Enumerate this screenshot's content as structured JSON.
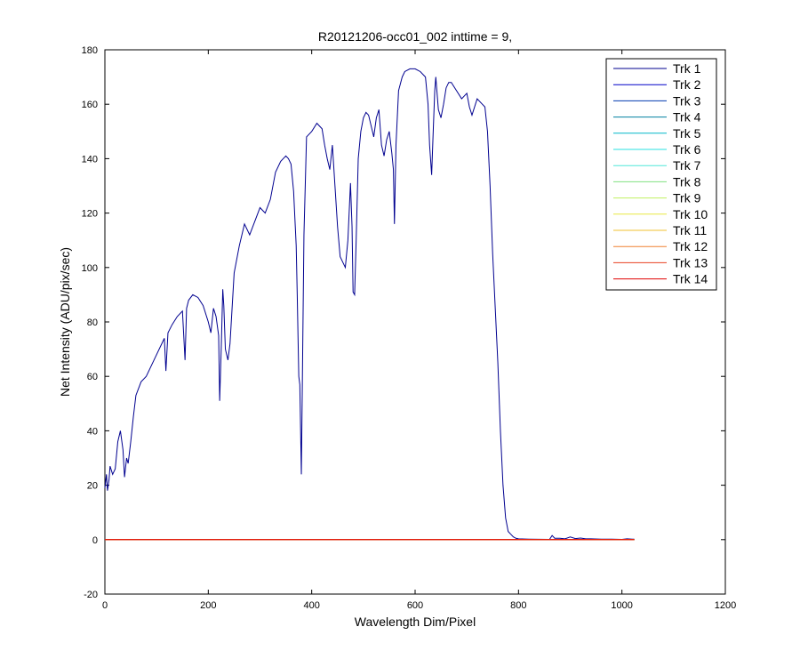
{
  "chart_data": {
    "type": "line",
    "title": "R20121206-occ01_002 inttime = 9,",
    "xlabel": "Wavelength Dim/Pixel",
    "ylabel": "Net Intensity (ADU/pix/sec)",
    "xlim": [
      0,
      1200
    ],
    "ylim": [
      -20,
      180
    ],
    "xticks": [
      0,
      200,
      400,
      600,
      800,
      1000,
      1200
    ],
    "yticks": [
      -20,
      0,
      20,
      40,
      60,
      80,
      100,
      120,
      140,
      160,
      180
    ],
    "grid": false,
    "legend_position": "top-right",
    "series": [
      {
        "name": "Trk 1",
        "color": "#00008f",
        "x": [
          0,
          3,
          5,
          8,
          10,
          15,
          20,
          25,
          30,
          35,
          38,
          42,
          45,
          50,
          55,
          60,
          70,
          80,
          90,
          100,
          110,
          115,
          118,
          122,
          130,
          140,
          150,
          155,
          158,
          162,
          170,
          180,
          190,
          200,
          205,
          210,
          215,
          220,
          222,
          225,
          228,
          230,
          233,
          238,
          242,
          250,
          260,
          270,
          280,
          290,
          300,
          310,
          320,
          330,
          340,
          350,
          355,
          360,
          365,
          370,
          372,
          375,
          377,
          380,
          385,
          390,
          400,
          410,
          420,
          425,
          430,
          435,
          440,
          445,
          450,
          455,
          460,
          465,
          470,
          475,
          478,
          480,
          483,
          486,
          490,
          495,
          500,
          505,
          510,
          515,
          520,
          525,
          530,
          535,
          540,
          545,
          550,
          555,
          558,
          560,
          563,
          568,
          575,
          580,
          590,
          600,
          610,
          620,
          625,
          628,
          632,
          635,
          638,
          640,
          645,
          650,
          655,
          660,
          665,
          670,
          680,
          690,
          700,
          705,
          710,
          720,
          730,
          735,
          740,
          745,
          750,
          755,
          760,
          765,
          770,
          775,
          780,
          785,
          790,
          795,
          800,
          820,
          860,
          865,
          870,
          880,
          890,
          900,
          910,
          920,
          930,
          940,
          960,
          980,
          1000,
          1010,
          1020,
          1024
        ],
        "values": [
          19,
          24,
          18,
          22,
          27,
          24,
          26,
          36,
          40,
          33,
          23,
          30,
          28,
          36,
          45,
          53,
          58,
          60,
          64,
          68,
          72,
          74,
          62,
          76,
          79,
          82,
          84,
          66,
          85,
          88,
          90,
          89,
          86,
          80,
          76,
          85,
          82,
          75,
          51,
          70,
          92,
          86,
          70,
          66,
          72,
          98,
          108,
          116,
          112,
          117,
          122,
          120,
          125,
          135,
          139,
          141,
          140,
          138,
          128,
          108,
          90,
          60,
          57,
          24,
          112,
          148,
          150,
          153,
          151,
          145,
          140,
          136,
          145,
          130,
          115,
          104,
          102,
          100,
          110,
          131,
          115,
          91,
          90,
          110,
          140,
          150,
          155,
          157,
          156,
          152,
          148,
          155,
          158,
          145,
          141,
          147,
          150,
          142,
          136,
          116,
          145,
          165,
          170,
          172,
          173,
          173,
          172,
          170,
          160,
          145,
          134,
          150,
          165,
          170,
          158,
          155,
          160,
          166,
          168,
          168,
          165,
          162,
          164,
          159,
          156,
          162,
          160,
          159,
          150,
          130,
          105,
          85,
          65,
          40,
          20,
          8,
          3,
          2,
          1,
          0.5,
          0.3,
          0.2,
          0.1,
          1.5,
          0.5,
          0.5,
          0.3,
          1,
          0.4,
          0.6,
          0.3,
          0.3,
          0.2,
          0.2,
          0.1,
          0.3,
          0.2,
          0.2
        ]
      },
      {
        "name": "Trk 2",
        "color": "#0000c8",
        "x": [
          0,
          1024
        ],
        "values": [
          0,
          0
        ]
      },
      {
        "name": "Trk 3",
        "color": "#0038b0",
        "x": [
          0,
          1024
        ],
        "values": [
          0,
          0
        ]
      },
      {
        "name": "Trk 4",
        "color": "#0080a0",
        "x": [
          0,
          1024
        ],
        "values": [
          0,
          0
        ]
      },
      {
        "name": "Trk 5",
        "color": "#00b8c8",
        "x": [
          0,
          1024
        ],
        "values": [
          0,
          0
        ]
      },
      {
        "name": "Trk 6",
        "color": "#28e0e0",
        "x": [
          0,
          1024
        ],
        "values": [
          0,
          0
        ]
      },
      {
        "name": "Trk 7",
        "color": "#50e8d8",
        "x": [
          0,
          1024
        ],
        "values": [
          0,
          0
        ]
      },
      {
        "name": "Trk 8",
        "color": "#80e080",
        "x": [
          0,
          1024
        ],
        "values": [
          0,
          0
        ]
      },
      {
        "name": "Trk 9",
        "color": "#c0f060",
        "x": [
          0,
          1024
        ],
        "values": [
          0,
          0
        ]
      },
      {
        "name": "Trk 10",
        "color": "#e8e840",
        "x": [
          0,
          1024
        ],
        "values": [
          0,
          0
        ]
      },
      {
        "name": "Trk 11",
        "color": "#f0c030",
        "x": [
          0,
          1024
        ],
        "values": [
          0,
          0
        ]
      },
      {
        "name": "Trk 12",
        "color": "#f08030",
        "x": [
          0,
          1024
        ],
        "values": [
          0,
          0
        ]
      },
      {
        "name": "Trk 13",
        "color": "#e84020",
        "x": [
          0,
          1024
        ],
        "values": [
          0,
          0
        ]
      },
      {
        "name": "Trk 14",
        "color": "#e00000",
        "x": [
          0,
          1024
        ],
        "values": [
          0,
          0
        ]
      }
    ]
  }
}
